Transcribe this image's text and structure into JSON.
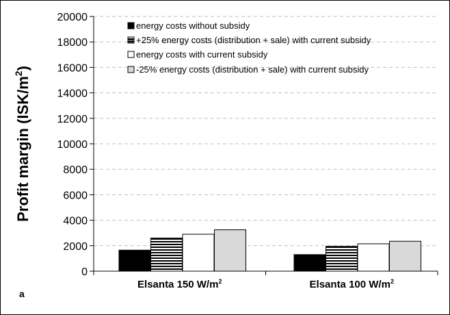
{
  "chart_data": {
    "type": "bar",
    "ylabel": "Profit margin (ISK/m²)",
    "panel_label": "a",
    "ylim": [
      0,
      20000
    ],
    "yticks": [
      0,
      2000,
      4000,
      6000,
      8000,
      10000,
      12000,
      14000,
      16000,
      18000,
      20000
    ],
    "grid": true,
    "legend_position": "top",
    "categories": [
      {
        "base": "Elsanta 150 W/m",
        "sup": "2"
      },
      {
        "base": "Elsanta 100 W/m",
        "sup": "2"
      }
    ],
    "series": [
      {
        "name": "energy costs without subsidy",
        "values": [
          1650,
          1300
        ],
        "fill": "solid-black"
      },
      {
        "name": "+25% energy costs (distribution + sale) with current subsidy",
        "values": [
          2600,
          1950
        ],
        "fill": "horizontal-stripes"
      },
      {
        "name": "energy costs with current subsidy",
        "values": [
          2900,
          2150
        ],
        "fill": "white"
      },
      {
        "name": "-25% energy costs (distribution + sale) with current subsidy",
        "values": [
          3250,
          2350
        ],
        "fill": "light-gray"
      }
    ],
    "colors": {
      "black": "#000000",
      "gray": "#d9d9d9",
      "white": "#ffffff",
      "grid": "#bfbfbf"
    }
  }
}
